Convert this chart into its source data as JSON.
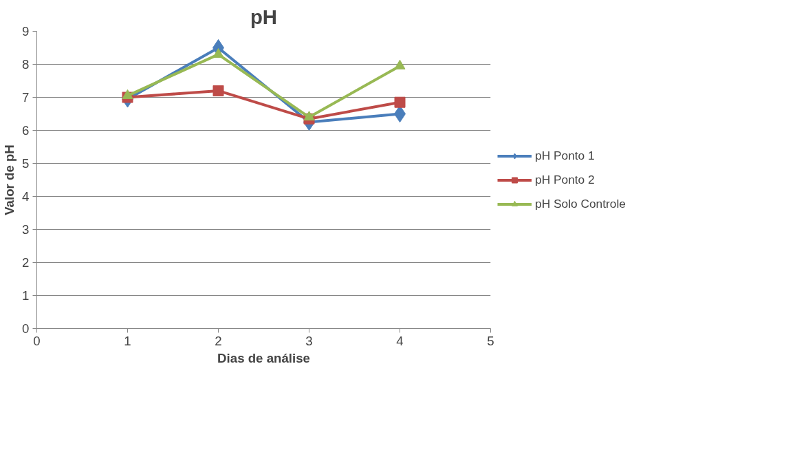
{
  "chart_data": {
    "type": "line",
    "title": "pH",
    "xlabel": "Dias de análise",
    "ylabel": "Valor de pH",
    "x": [
      1,
      2,
      3,
      4
    ],
    "xlim": [
      0,
      5
    ],
    "xticks": [
      0,
      1,
      2,
      3,
      4,
      5
    ],
    "ylim": [
      0,
      9
    ],
    "yticks": [
      0,
      1,
      2,
      3,
      4,
      5,
      6,
      7,
      8,
      9
    ],
    "grid": "y",
    "legend": "right",
    "line_style": "solid",
    "series": [
      {
        "name": "pH Ponto 1",
        "color": "#4a7ebb",
        "marker": "diamond",
        "values": [
          6.95,
          8.5,
          6.25,
          6.5
        ]
      },
      {
        "name": "pH Ponto 2",
        "color": "#be4b48",
        "marker": "square",
        "values": [
          7.0,
          7.2,
          6.35,
          6.85
        ]
      },
      {
        "name": "pH Solo Controle",
        "color": "#98b954",
        "marker": "triangle",
        "values": [
          7.05,
          8.3,
          6.4,
          7.95
        ]
      }
    ]
  }
}
